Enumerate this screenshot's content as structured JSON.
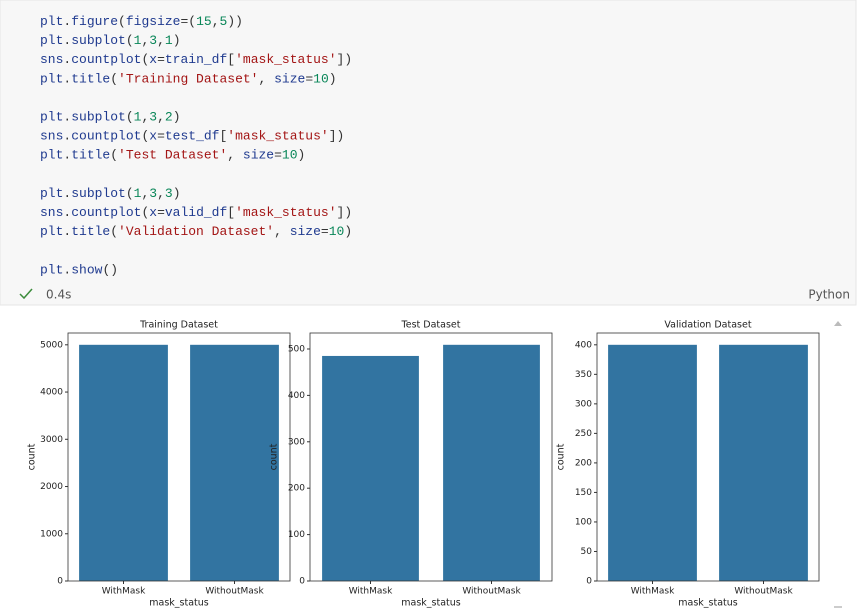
{
  "code_blocks": [
    [
      "plt.figure(figsize=(15,5))",
      "plt.subplot(1,3,1)",
      "sns.countplot(x=train_df['mask_status'])",
      "plt.title('Training Dataset', size=10)"
    ],
    [
      "plt.subplot(1,3,2)",
      "sns.countplot(x=test_df['mask_status'])",
      "plt.title('Test Dataset', size=10)"
    ],
    [
      "plt.subplot(1,3,3)",
      "sns.countplot(x=valid_df['mask_status'])",
      "plt.title('Validation Dataset', size=10)"
    ],
    [
      "plt.show()"
    ]
  ],
  "status": {
    "duration": "0.4s",
    "language": "Python"
  },
  "chart_data": [
    {
      "type": "bar",
      "title": "Training Dataset",
      "xlabel": "mask_status",
      "ylabel": "count",
      "categories": [
        "WithMask",
        "WithoutMask"
      ],
      "values": [
        5000,
        5000
      ],
      "color": "#3274a1",
      "ylim": [
        0,
        5250
      ],
      "yticks": [
        0,
        1000,
        2000,
        3000,
        4000,
        5000
      ]
    },
    {
      "type": "bar",
      "title": "Test Dataset",
      "xlabel": "mask_status",
      "ylabel": "count",
      "categories": [
        "WithMask",
        "WithoutMask"
      ],
      "values": [
        485,
        509
      ],
      "color": "#3274a1",
      "ylim": [
        0,
        534.45
      ],
      "yticks": [
        0,
        100,
        200,
        300,
        400,
        500
      ]
    },
    {
      "type": "bar",
      "title": "Validation Dataset",
      "xlabel": "mask_status",
      "ylabel": "count",
      "categories": [
        "WithMask",
        "WithoutMask"
      ],
      "values": [
        400,
        400
      ],
      "color": "#3274a1",
      "ylim": [
        0,
        420
      ],
      "yticks": [
        0,
        50,
        100,
        150,
        200,
        250,
        300,
        350,
        400
      ]
    }
  ]
}
